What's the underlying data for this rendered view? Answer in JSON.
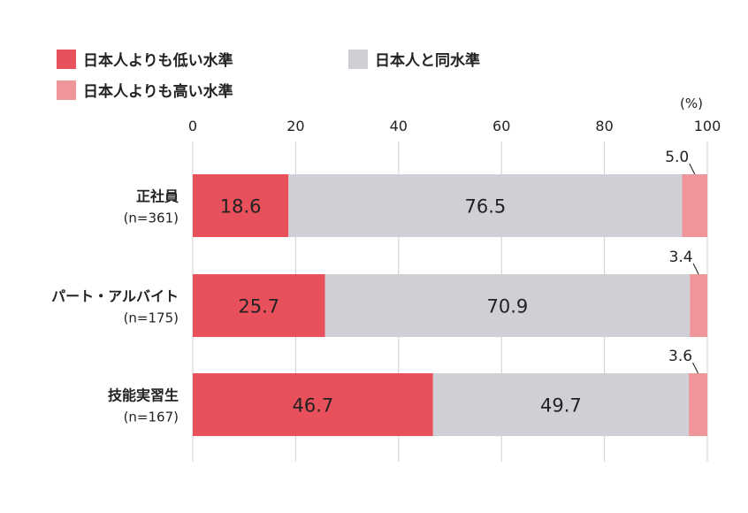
{
  "chart_data": {
    "type": "bar",
    "orientation": "horizontal",
    "stacked": true,
    "unit": "(%)",
    "xlim": [
      0,
      100
    ],
    "x_ticks": [
      "0",
      "20",
      "40",
      "60",
      "80",
      "100"
    ],
    "grid": true,
    "legend_position": "top-left",
    "categories": [
      {
        "name": "正社員",
        "n": "(n=361)"
      },
      {
        "name": "パート・アルバイト",
        "n": "(n=175)"
      },
      {
        "name": "技能実習生",
        "n": "(n=167)"
      }
    ],
    "series": [
      {
        "name": "日本人よりも低い水準",
        "color": "#e8505b",
        "values": [
          18.6,
          25.7,
          46.7
        ],
        "labels": [
          "18.6",
          "25.7",
          "46.7"
        ]
      },
      {
        "name": "日本人と同水準",
        "color": "#cfd0d6",
        "values": [
          76.5,
          70.9,
          49.7
        ],
        "labels": [
          "76.5",
          "70.9",
          "49.7"
        ]
      },
      {
        "name": "日本人よりも高い水準",
        "color": "#f0959a",
        "values": [
          5.0,
          3.4,
          3.6
        ],
        "labels": [
          "5.0",
          "3.4",
          "3.6"
        ]
      }
    ]
  }
}
